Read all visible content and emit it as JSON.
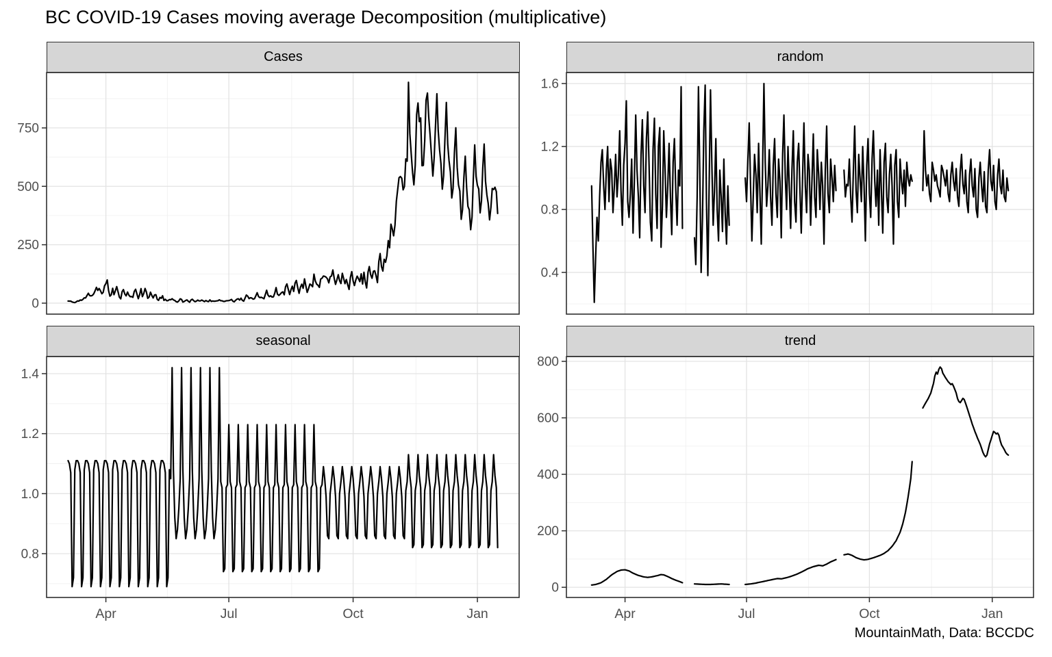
{
  "title": "BC COVID-19 Cases moving average Decomposition (multiplicative)",
  "caption": "MountainMath, Data: BCCDC",
  "chart_data": {
    "type": "line",
    "layout": "2x2-facets",
    "line_color": "#000000",
    "identity": "Cases = trend * seasonal * random",
    "x_axis": {
      "unit": "day index (day 0 = early March, day 318 = mid January)",
      "start_day": 0,
      "end_day": 318,
      "domain": [
        -15.9,
        333.9
      ],
      "ticks": [
        {
          "day": 28,
          "label": "Apr"
        },
        {
          "day": 119,
          "label": "Jul"
        },
        {
          "day": 211,
          "label": "Oct"
        },
        {
          "day": 303,
          "label": "Jan"
        }
      ],
      "minor_days": [
        73.5,
        165.5,
        257.5
      ]
    },
    "panels": [
      {
        "key": "cases",
        "label": "Cases",
        "grid": {
          "row": 0,
          "col": 0
        },
        "ylim": [
          -47,
          987
        ],
        "yticks": [
          0,
          250,
          500,
          750
        ],
        "ytick_labels": [
          "0",
          "250",
          "500",
          "750"
        ],
        "yminor": [
          125,
          375,
          625,
          875
        ],
        "series": "derived",
        "derived_from": "trend * seasonal * random"
      },
      {
        "key": "random",
        "label": "random",
        "grid": {
          "row": 0,
          "col": 1
        },
        "ylim": [
          0.135,
          1.67
        ],
        "yticks": [
          0.4,
          0.8,
          1.2,
          1.6
        ],
        "ytick_labels": [
          "0.4",
          "0.8",
          "1.2",
          "1.6"
        ],
        "yminor": [
          0.2,
          0.6,
          1.0,
          1.4
        ],
        "segments": [
          {
            "start": 3,
            "values": [
              0.95,
              0.55,
              0.21,
              0.5,
              0.75,
              0.6,
              0.88,
              1.1,
              1.18,
              0.95,
              0.8,
              1.05,
              1.2,
              0.85,
              1.12,
              1.05,
              0.78,
              0.95,
              1.15,
              0.88,
              1.02,
              1.3,
              0.92,
              0.7,
              1.08,
              1.22,
              1.49,
              0.85,
              0.75,
              0.9,
              1.12,
              0.65,
              0.98,
              1.4,
              1.05,
              0.88,
              0.62,
              1.15,
              1.37,
              0.95,
              0.78,
              1.25,
              1.42,
              1.08,
              0.72,
              0.6,
              1.18,
              1.38,
              0.9,
              0.68,
              1.2,
              1.32,
              0.56,
              0.82,
              1.3,
              1.05,
              0.75,
              0.95,
              1.22,
              0.88,
              0.64,
              1.1,
              1.25,
              0.92,
              0.7,
              1.05,
              0.95,
              1.58,
              0.68
            ]
          },
          {
            "start": 80,
            "values": [
              0.62,
              0.45,
              0.88,
              1.58,
              1.02,
              0.4,
              0.75,
              1.3,
              1.59,
              0.85,
              0.38,
              0.95,
              1.56,
              1.1,
              0.7,
              0.92,
              1.25,
              0.8,
              0.6,
              1.05,
              0.88,
              0.66,
              1.12,
              0.78,
              0.58,
              0.95,
              0.7
            ]
          },
          {
            "start": 118,
            "values": [
              1.0,
              0.85,
              1.12,
              1.35,
              0.95,
              0.6,
              0.88,
              1.15,
              1.02,
              0.78,
              1.22,
              0.92,
              0.58,
              1.05,
              1.6,
              1.1,
              0.82,
              0.95,
              1.18,
              0.88,
              0.7,
              1.08,
              1.25,
              0.9,
              0.75,
              1.12,
              0.98,
              0.62,
              1.15,
              1.4,
              1.0,
              0.8,
              1.2,
              0.95,
              0.68,
              1.05,
              1.3,
              0.85,
              0.72,
              1.1,
              1.22,
              0.92,
              0.65,
              1.02,
              1.35,
              0.95,
              0.78,
              1.15,
              1.05,
              0.7,
              0.98,
              1.28,
              0.88,
              0.75,
              1.18,
              1.02,
              0.8,
              1.1,
              0.95,
              0.58,
              1.05,
              1.33,
              0.9,
              0.78,
              1.12,
              1.0,
              0.85,
              1.08,
              0.92
            ]
          },
          {
            "start": 192,
            "values": [
              1.05,
              0.88,
              0.96,
              0.95,
              1.12,
              0.88,
              0.72,
              1.05,
              1.33,
              0.92,
              0.78,
              1.15,
              1.0,
              0.85,
              1.2,
              0.95,
              0.6,
              1.08,
              1.25,
              0.9,
              0.75,
              1.12,
              1.3,
              0.98,
              0.82,
              1.05,
              0.7,
              1.18,
              0.92,
              0.65,
              1.1,
              1.22,
              0.88,
              0.78,
              1.02,
              1.15,
              0.95,
              0.58,
              1.08,
              1.18,
              0.85,
              0.75,
              1.12,
              0.98,
              0.9,
              1.05,
              0.82,
              1.1,
              1.0,
              0.95,
              1.02,
              0.98
            ]
          },
          {
            "start": 251,
            "values": [
              0.92,
              1.3,
              1.05,
              0.95,
              1.02,
              0.9,
              0.85,
              1.1,
              1.05,
              0.98,
              1.02,
              0.95,
              0.92,
              0.88,
              1.08,
              1.05,
              1.0,
              0.95,
              1.05,
              0.9,
              0.85,
              1.02,
              1.1,
              0.98,
              0.92,
              1.06,
              0.88,
              0.82,
              1.04,
              1.15,
              0.96,
              0.9,
              1.05,
              0.85,
              0.78,
              1.02,
              1.12,
              0.95,
              0.88,
              1.06,
              0.8,
              0.75,
              1.0,
              1.1,
              0.95,
              0.85,
              1.04,
              0.82,
              0.78,
              1.05,
              1.18,
              0.98,
              0.92,
              1.08,
              0.85,
              0.8,
              1.02,
              1.12,
              0.95,
              0.9,
              1.05,
              0.88,
              0.85,
              1.0,
              0.92
            ]
          }
        ]
      },
      {
        "key": "seasonal",
        "label": "seasonal",
        "grid": {
          "row": 1,
          "col": 0
        },
        "ylim": [
          0.654,
          1.457
        ],
        "yticks": [
          0.8,
          1.0,
          1.2,
          1.4
        ],
        "ytick_labels": [
          "0.8",
          "1.0",
          "1.2",
          "1.4"
        ],
        "yminor": [
          0.7,
          0.9,
          1.1,
          1.3
        ],
        "regimes": [
          {
            "start": 0,
            "end": 75,
            "weekly": [
              1.11,
              1.1,
              1.07,
              0.69,
              0.72,
              1.08,
              1.11
            ]
          },
          {
            "start": 76,
            "end": 112,
            "weekly": [
              1.42,
              1.08,
              0.92,
              0.85,
              0.88,
              0.95,
              1.05
            ]
          },
          {
            "start": 113,
            "end": 188,
            "weekly": [
              1.23,
              1.04,
              1.02,
              0.74,
              0.75,
              1.02,
              1.03
            ]
          },
          {
            "start": 189,
            "end": 249,
            "weekly": [
              1.09,
              1.05,
              0.99,
              0.86,
              0.85,
              1.0,
              1.04
            ]
          },
          {
            "start": 250,
            "end": 318,
            "weekly": [
              1.13,
              1.06,
              1.02,
              0.82,
              0.83,
              1.01,
              1.04
            ]
          }
        ]
      },
      {
        "key": "trend",
        "label": "trend",
        "grid": {
          "row": 1,
          "col": 1
        },
        "ylim": [
          -36,
          817
        ],
        "yticks": [
          0,
          200,
          400,
          600,
          800
        ],
        "ytick_labels": [
          "0",
          "200",
          "400",
          "600",
          "800"
        ],
        "yminor": [
          100,
          300,
          500,
          700
        ],
        "segments": [
          {
            "points": [
              [
                3,
                8
              ],
              [
                6,
                10
              ],
              [
                10,
                16
              ],
              [
                14,
                28
              ],
              [
                18,
                44
              ],
              [
                22,
                56
              ],
              [
                25,
                61
              ],
              [
                28,
                62
              ],
              [
                31,
                58
              ],
              [
                34,
                50
              ],
              [
                38,
                42
              ],
              [
                42,
                37
              ],
              [
                45,
                35
              ],
              [
                48,
                37
              ],
              [
                52,
                41
              ],
              [
                55,
                45
              ],
              [
                57,
                44
              ],
              [
                60,
                38
              ],
              [
                63,
                31
              ],
              [
                66,
                25
              ],
              [
                69,
                20
              ],
              [
                71,
                16
              ]
            ]
          },
          {
            "points": [
              [
                80,
                12
              ],
              [
                84,
                11
              ],
              [
                88,
                10
              ],
              [
                92,
                10
              ],
              [
                96,
                11
              ],
              [
                100,
                12
              ],
              [
                103,
                11
              ],
              [
                106,
                10
              ]
            ]
          },
          {
            "points": [
              [
                118,
                10
              ],
              [
                122,
                12
              ],
              [
                126,
                15
              ],
              [
                130,
                19
              ],
              [
                134,
                23
              ],
              [
                138,
                27
              ],
              [
                142,
                31
              ],
              [
                145,
                30
              ],
              [
                149,
                34
              ],
              [
                153,
                40
              ],
              [
                157,
                47
              ],
              [
                161,
                56
              ],
              [
                165,
                66
              ],
              [
                169,
                73
              ],
              [
                173,
                78
              ],
              [
                176,
                76
              ],
              [
                179,
                82
              ],
              [
                182,
                90
              ],
              [
                186,
                98
              ]
            ]
          },
          {
            "points": [
              [
                192,
                115
              ],
              [
                195,
                118
              ],
              [
                198,
                113
              ],
              [
                201,
                105
              ],
              [
                204,
                100
              ],
              [
                207,
                97
              ],
              [
                210,
                99
              ],
              [
                213,
                103
              ],
              [
                216,
                108
              ],
              [
                219,
                113
              ],
              [
                222,
                120
              ],
              [
                225,
                130
              ],
              [
                228,
                145
              ],
              [
                231,
                165
              ],
              [
                234,
                195
              ],
              [
                236,
                225
              ],
              [
                238,
                265
              ],
              [
                240,
                320
              ],
              [
                242,
                385
              ],
              [
                243,
                445
              ]
            ]
          },
          {
            "points": [
              [
                251,
                635
              ],
              [
                253,
                652
              ],
              [
                255,
                668
              ],
              [
                257,
                688
              ],
              [
                259,
                722
              ],
              [
                260,
                748
              ],
              [
                261,
                762
              ],
              [
                262,
                755
              ],
              [
                263,
                772
              ],
              [
                264,
                780
              ],
              [
                265,
                774
              ],
              [
                266,
                758
              ],
              [
                268,
                742
              ],
              [
                270,
                728
              ],
              [
                272,
                718
              ],
              [
                273,
                721
              ],
              [
                274,
                712
              ],
              [
                276,
                688
              ],
              [
                277,
                668
              ],
              [
                278,
                658
              ],
              [
                279,
                654
              ],
              [
                280,
                661
              ],
              [
                281,
                669
              ],
              [
                282,
                665
              ],
              [
                284,
                638
              ],
              [
                286,
                608
              ],
              [
                288,
                578
              ],
              [
                290,
                552
              ],
              [
                292,
                528
              ],
              [
                294,
                506
              ],
              [
                295,
                492
              ],
              [
                296,
                478
              ],
              [
                297,
                468
              ],
              [
                298,
                462
              ],
              [
                299,
                468
              ],
              [
                300,
                488
              ],
              [
                301,
                508
              ],
              [
                302,
                522
              ],
              [
                303,
                538
              ],
              [
                304,
                552
              ],
              [
                305,
                548
              ],
              [
                306,
                543
              ],
              [
                307,
                546
              ],
              [
                308,
                538
              ],
              [
                309,
                518
              ],
              [
                310,
                504
              ],
              [
                311,
                496
              ],
              [
                312,
                488
              ],
              [
                313,
                478
              ],
              [
                314,
                472
              ],
              [
                315,
                468
              ]
            ]
          }
        ]
      }
    ]
  }
}
